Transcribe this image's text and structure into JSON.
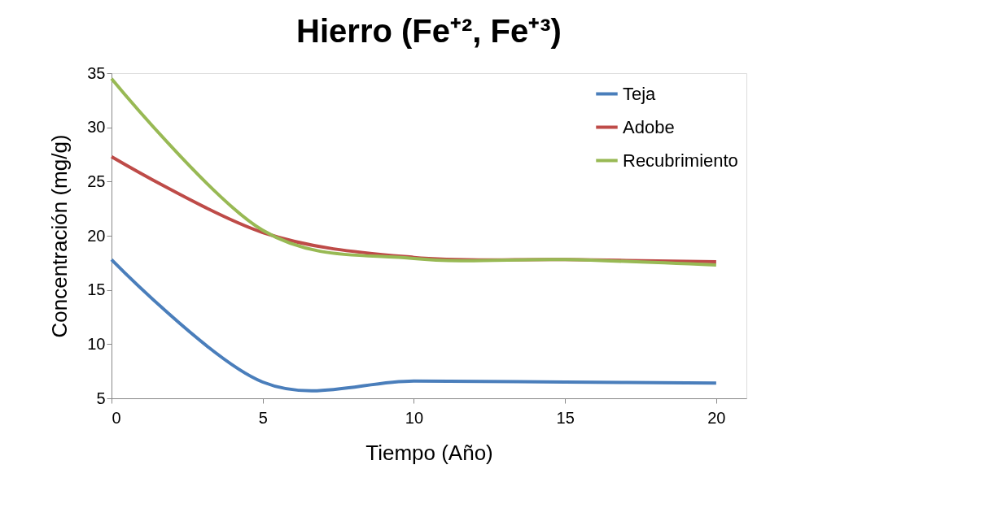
{
  "chart_data": {
    "type": "line",
    "title": "Hierro (Fe⁺², Fe⁺³)",
    "xlabel": "Tiempo (Año)",
    "ylabel": "Concentración (mg/g)",
    "x": [
      0,
      5,
      10,
      15,
      20
    ],
    "series": [
      {
        "name": "Teja",
        "color": "#4a7ebb",
        "values": [
          17.8,
          6.5,
          6.6,
          6.5,
          6.4
        ]
      },
      {
        "name": "Adobe",
        "color": "#be4b48",
        "values": [
          27.3,
          20.3,
          18.0,
          17.8,
          17.6
        ]
      },
      {
        "name": "Recubrimiento",
        "color": "#98b954",
        "values": [
          34.5,
          20.5,
          17.9,
          17.8,
          17.3
        ]
      }
    ],
    "xlim": [
      0,
      21
    ],
    "xticks": [
      0,
      5,
      10,
      15,
      20
    ],
    "ylim": [
      5,
      35
    ],
    "yticks": [
      5,
      10,
      15,
      20,
      25,
      30,
      35
    ],
    "grid": false,
    "legend": "top right",
    "marker": "none",
    "line_style": "solid"
  }
}
